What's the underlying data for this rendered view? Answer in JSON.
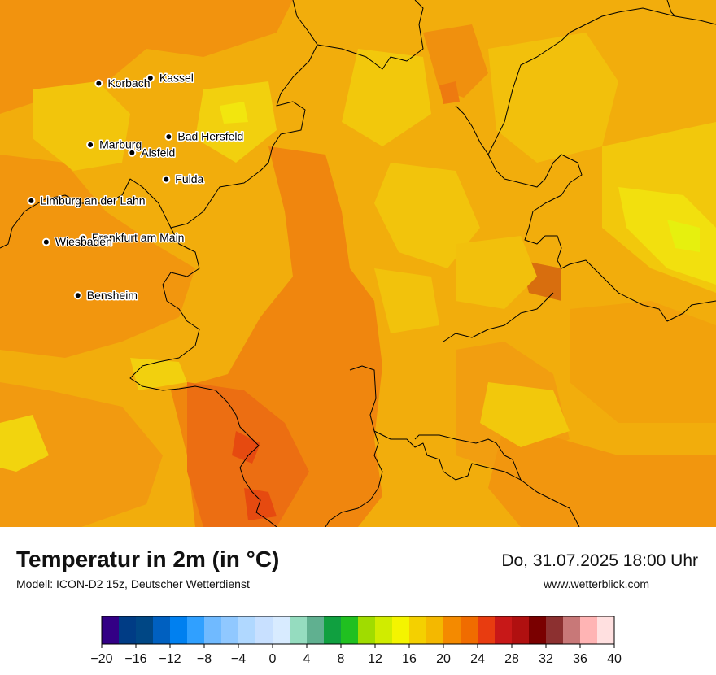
{
  "map": {
    "cities": [
      {
        "name": "Kassel",
        "lon": 9.49,
        "lat": 51.31
      },
      {
        "name": "Korbach",
        "lon": 8.87,
        "lat": 51.27
      },
      {
        "name": "Bad Hersfeld",
        "lon": 9.71,
        "lat": 50.87
      },
      {
        "name": "Marburg",
        "lon": 8.77,
        "lat": 50.81
      },
      {
        "name": "Alsfeld",
        "lon": 9.27,
        "lat": 50.75
      },
      {
        "name": "Fulda",
        "lon": 9.68,
        "lat": 50.55
      },
      {
        "name": "Limburg an der Lahn",
        "lon": 8.06,
        "lat": 50.39
      },
      {
        "name": "Frankfurt am Main",
        "lon": 8.68,
        "lat": 50.11
      },
      {
        "name": "Wiesbaden",
        "lon": 8.24,
        "lat": 50.08
      },
      {
        "name": "Bensheim",
        "lon": 8.62,
        "lat": 49.68
      }
    ]
  },
  "footer": {
    "title": "Temperatur in 2m (in °C)",
    "model": "Modell: ICON-D2 15z, Deutscher Wetterdienst",
    "datetime": "Do, 31.07.2025 18:00 Uhr",
    "website": "www.wetterblick.com"
  },
  "legend": {
    "unit": "°C",
    "min": -20,
    "max": 40,
    "step": 2,
    "ticks": [
      "−20",
      "−16",
      "−12",
      "−8",
      "−4",
      "0",
      "4",
      "8",
      "12",
      "16",
      "20",
      "24",
      "28",
      "32",
      "36",
      "40"
    ],
    "colors": [
      "#330085",
      "#003c85",
      "#004785",
      "#0060c0",
      "#0080f0",
      "#30a0ff",
      "#70baff",
      "#90c8ff",
      "#b0d8ff",
      "#c8e0ff",
      "#d8ebff",
      "#95dcbf",
      "#60b090",
      "#10a040",
      "#20c020",
      "#a0dc00",
      "#d0ec00",
      "#f4f400",
      "#f4d000",
      "#f4b800",
      "#f48a00",
      "#f06c00",
      "#e83c10",
      "#c81818",
      "#b01010",
      "#7a0000",
      "#8c3030",
      "#c87878",
      "#ffb4b4",
      "#ffe0e0"
    ]
  }
}
